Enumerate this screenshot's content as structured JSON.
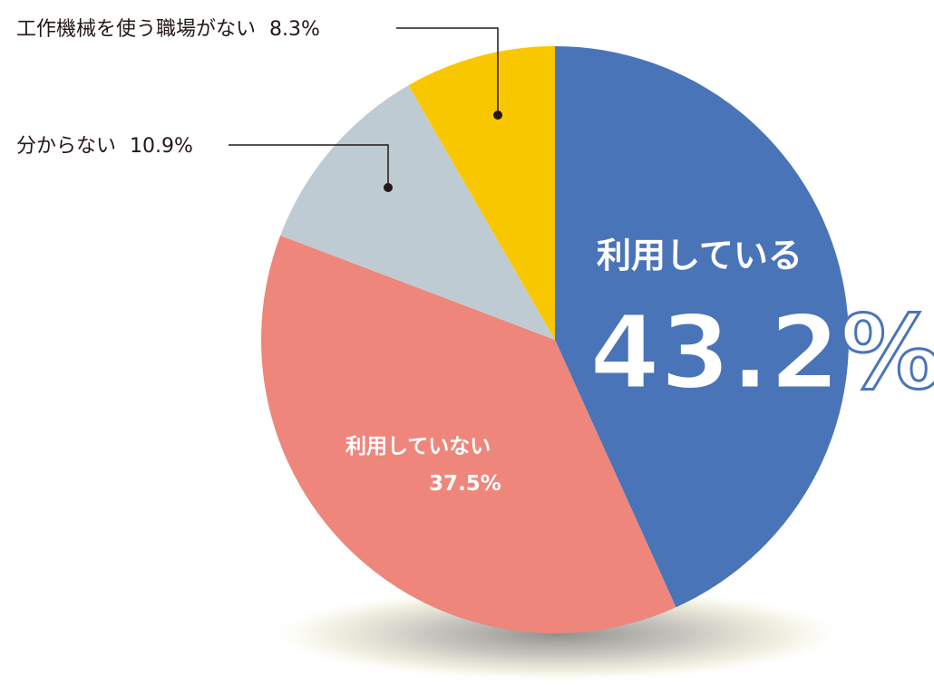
{
  "chart_data": {
    "type": "pie",
    "start": "top, clockwise",
    "slices": [
      {
        "label": "利用している",
        "value": 43.2,
        "value_text": "43.2%",
        "color": "#4a74b8"
      },
      {
        "label": "利用していない",
        "value": 37.5,
        "value_text": "37.5%",
        "color": "#ee867c"
      },
      {
        "label": "分からない",
        "value": 10.9,
        "value_text": "10.9%",
        "color": "#bfcbd3"
      },
      {
        "label": "工作機械を使う職場がない",
        "value": 8.3,
        "value_text": "8.3%",
        "color": "#f9c700"
      }
    ]
  }
}
